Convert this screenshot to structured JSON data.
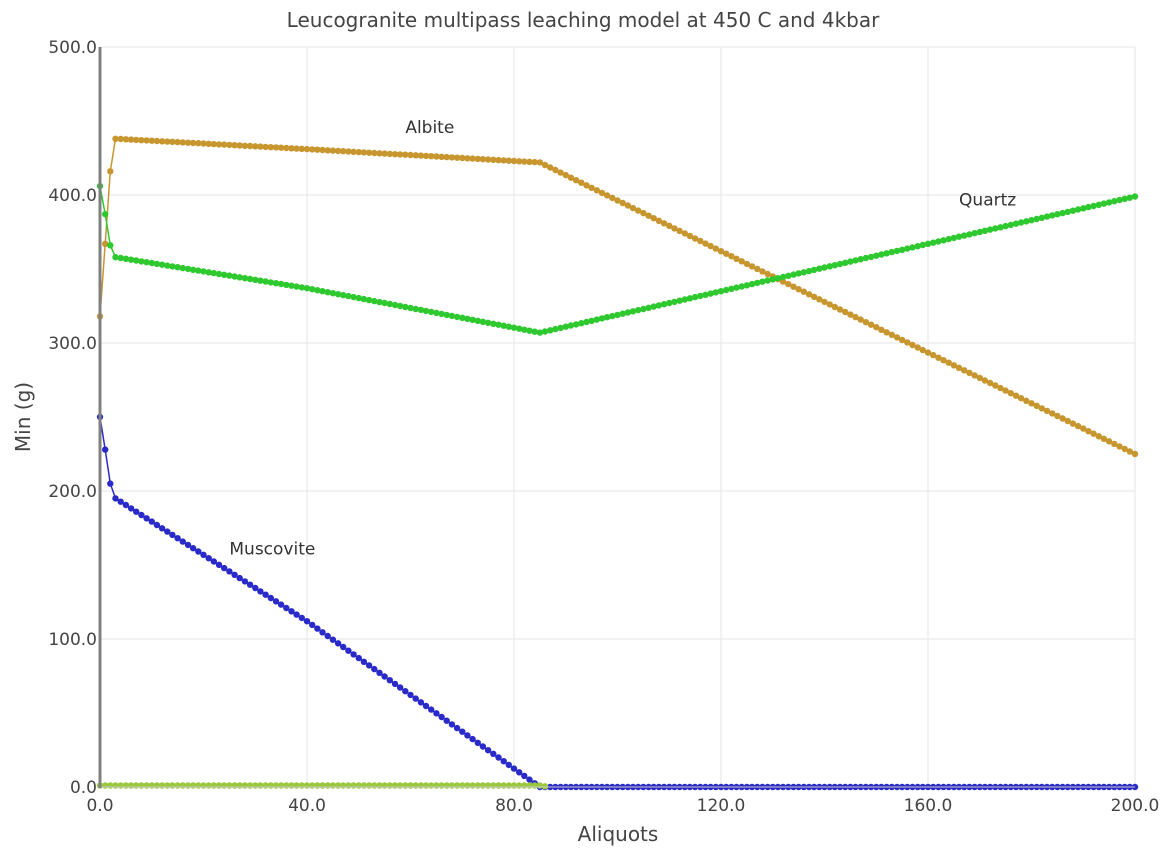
{
  "chart_data": {
    "type": "line",
    "title": "Leucogranite multipass leaching model at 450 C and 4kbar",
    "xlabel": "Aliquots",
    "ylabel": "Min (g)",
    "xlim": [
      0,
      200
    ],
    "ylim": [
      0,
      500
    ],
    "grid": true,
    "x_ticks": [
      "0.0",
      "40.0",
      "80.0",
      "120.0",
      "160.0",
      "200.0"
    ],
    "y_ticks": [
      "0.0",
      "100.0",
      "200.0",
      "300.0",
      "400.0",
      "500.0"
    ],
    "x_tick_values": [
      0,
      40,
      80,
      120,
      160,
      200
    ],
    "y_tick_values": [
      0,
      100,
      200,
      300,
      400,
      500
    ],
    "series": [
      {
        "name": "Albite",
        "color": "#c8962e",
        "x": [
          0,
          1,
          2,
          3,
          40,
          85,
          200
        ],
        "values": [
          318,
          367,
          416,
          438,
          431,
          422,
          225
        ]
      },
      {
        "name": "Quartz",
        "color": "#2ec92e",
        "x": [
          0,
          1,
          2,
          3,
          40,
          85,
          200
        ],
        "values": [
          406,
          387,
          366,
          358,
          337,
          307,
          399
        ]
      },
      {
        "name": "Muscovite",
        "color": "#2a2ac8",
        "x": [
          0,
          1,
          2,
          3,
          40,
          85,
          200
        ],
        "values": [
          250,
          228,
          205,
          195,
          112,
          0,
          0
        ]
      },
      {
        "name": "",
        "color": "#9ac83c",
        "x": [
          0,
          85,
          86
        ],
        "values": [
          1,
          1,
          0.5
        ]
      }
    ],
    "annotations": [
      {
        "text": "Albite",
        "x": 59,
        "y": 442
      },
      {
        "text": "Quartz",
        "x": 166,
        "y": 393
      },
      {
        "text": "Muscovite",
        "x": 25,
        "y": 157
      }
    ]
  }
}
